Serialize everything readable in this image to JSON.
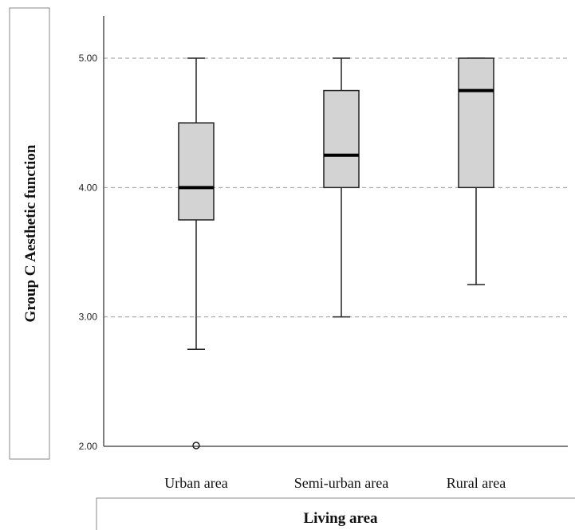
{
  "chart_data": {
    "type": "boxplot",
    "xlabel": "Living area",
    "ylabel": "Group C Aesthetic function",
    "ylim": [
      2.0,
      5.3
    ],
    "yticks": [
      "2.00",
      "3.00",
      "4.00",
      "5.00"
    ],
    "grid": true,
    "categories": [
      "Urban area",
      "Semi-urban area",
      "Rural area"
    ],
    "boxes": [
      {
        "category": "Urban area",
        "whisker_low": 2.75,
        "q1": 3.75,
        "median": 4.0,
        "q3": 4.5,
        "whisker_high": 5.0,
        "outliers": [
          2.0
        ]
      },
      {
        "category": "Semi-urban area",
        "whisker_low": 3.0,
        "q1": 4.0,
        "median": 4.25,
        "q3": 4.75,
        "whisker_high": 5.0,
        "outliers": []
      },
      {
        "category": "Rural area",
        "whisker_low": 3.25,
        "q1": 4.0,
        "median": 4.75,
        "q3": 5.0,
        "whisker_high": 5.0,
        "outliers": []
      }
    ],
    "colors": {
      "box_fill": "#d3d3d3",
      "median": "#000000",
      "grid": "#999999"
    }
  }
}
